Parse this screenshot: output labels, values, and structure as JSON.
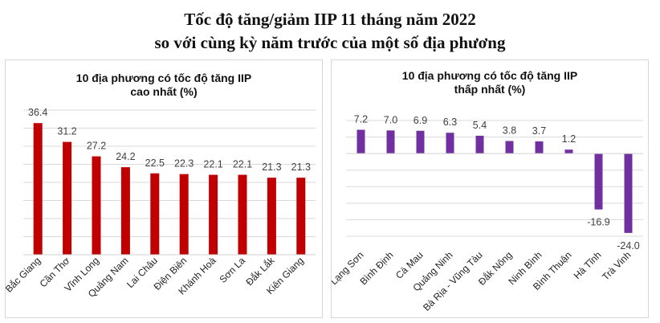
{
  "header": {
    "line1": "Tốc độ tăng/giảm IIP 11 tháng năm 2022",
    "line2": "so với cùng kỳ năm trước của một số địa phương"
  },
  "chart_data": [
    {
      "type": "bar",
      "title_lines": [
        "10 địa phương có tốc độ tăng IIP",
        "cao nhất (%)"
      ],
      "categories": [
        "Bắc Giang",
        "Cần Thơ",
        "Vĩnh Long",
        "Quảng Nam",
        "Lai Châu",
        "Điện Biên",
        "Khánh Hoà",
        "Sơn La",
        "Đắk Lắk",
        "Kiên Giang"
      ],
      "values": [
        36.4,
        31.2,
        27.2,
        24.2,
        22.5,
        22.3,
        22.1,
        22.1,
        21.3,
        21.3
      ],
      "value_labels": [
        "36.4",
        "31.2",
        "27.2",
        "24.2",
        "22.5",
        "22.3",
        "22.1",
        "22.1",
        "21.3",
        "21.3"
      ],
      "ylim": [
        0,
        40
      ],
      "grid": true,
      "bar_color": "#c00000"
    },
    {
      "type": "bar",
      "title_lines": [
        "10 địa phương có tốc độ tăng IIP",
        "thấp nhất (%)"
      ],
      "categories": [
        "Lạng Sơn",
        "Bình Định",
        "Cà Mau",
        "Quảng Ninh",
        "Bà Rịa - Vũng Tàu",
        "Đắk Nông",
        "Ninh Bình",
        "Bình Thuận",
        "Hà Tĩnh",
        "Trà Vinh"
      ],
      "values": [
        7.2,
        7.0,
        6.9,
        6.3,
        5.4,
        3.8,
        3.7,
        1.2,
        -16.9,
        -24.0
      ],
      "value_labels": [
        "7.2",
        "7.0",
        "6.9",
        "6.3",
        "5.4",
        "3.8",
        "3.7",
        "1.2",
        "-16.9",
        "-24.0"
      ],
      "ylim": [
        -25,
        10
      ],
      "grid": true,
      "bar_color": "#7030a0"
    }
  ]
}
